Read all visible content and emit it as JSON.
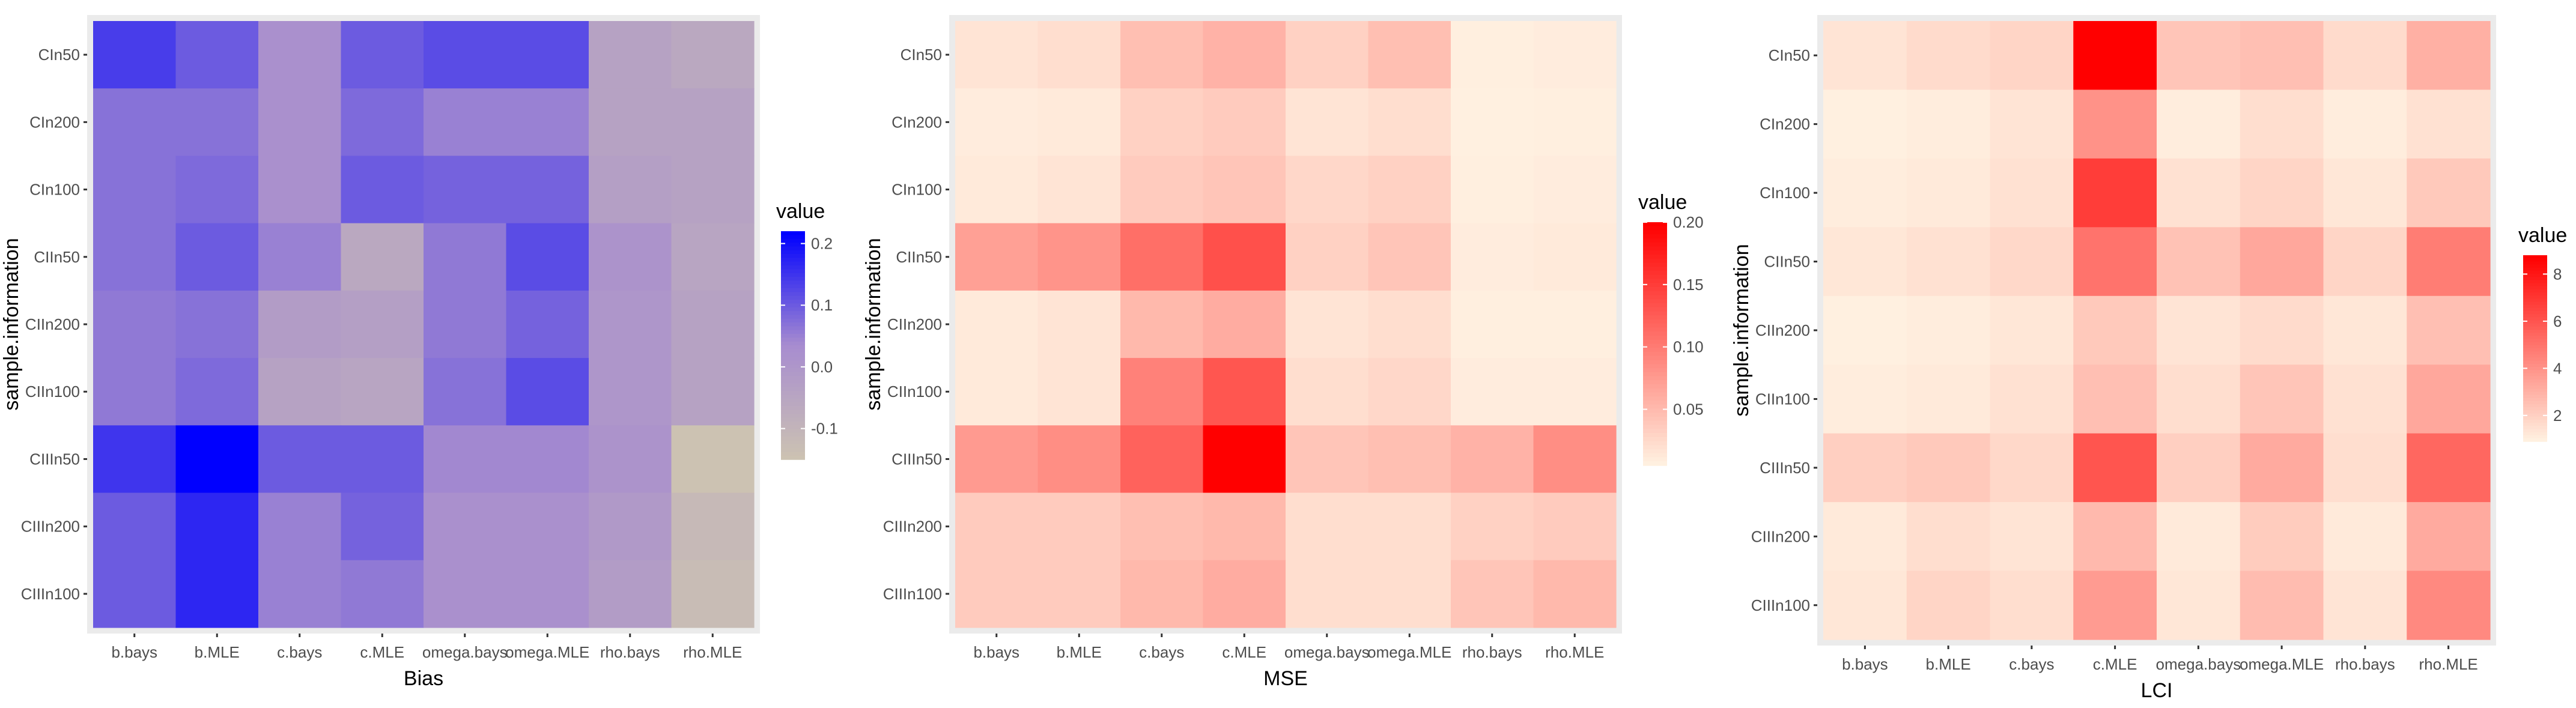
{
  "chart_data": [
    {
      "type": "heatmap",
      "title": "",
      "xlabel": "Bias",
      "ylabel": "sample.information",
      "x_categories": [
        "b.bays",
        "b.MLE",
        "c.bays",
        "c.MLE",
        "omega.bays",
        "omega.MLE",
        "rho.bays",
        "rho.MLE"
      ],
      "y_categories": [
        "CIn50",
        "CIn200",
        "CIn100",
        "CIIn50",
        "CIIn200",
        "CIIn100",
        "CIIIn50",
        "CIIIn200",
        "CIIIn100"
      ],
      "values": [
        [
          0.14,
          0.1,
          0.02,
          0.1,
          0.12,
          0.12,
          -0.04,
          -0.06
        ],
        [
          0.07,
          0.07,
          0.02,
          0.08,
          0.05,
          0.05,
          -0.04,
          -0.04
        ],
        [
          0.07,
          0.08,
          0.02,
          0.1,
          0.09,
          0.09,
          -0.03,
          -0.04
        ],
        [
          0.07,
          0.1,
          0.05,
          -0.06,
          0.06,
          0.12,
          0.01,
          -0.05
        ],
        [
          0.06,
          0.07,
          -0.02,
          -0.03,
          0.06,
          0.09,
          0.0,
          -0.04
        ],
        [
          0.06,
          0.08,
          -0.04,
          -0.05,
          0.07,
          0.12,
          0.0,
          -0.04
        ],
        [
          0.15,
          0.22,
          0.1,
          0.1,
          0.04,
          0.04,
          0.01,
          -0.15
        ],
        [
          0.1,
          0.17,
          0.05,
          0.09,
          0.02,
          0.02,
          -0.01,
          -0.12
        ],
        [
          0.1,
          0.17,
          0.05,
          0.06,
          0.02,
          0.02,
          -0.02,
          -0.13
        ]
      ],
      "legend": {
        "title": "value",
        "ticks": [
          "0.2",
          "0.1",
          "0.0",
          "-0.1"
        ],
        "range": [
          -0.15,
          0.22
        ],
        "colors": [
          "#CCC2B2",
          "#A78CCF",
          "#0000FF"
        ],
        "placement": "right"
      }
    },
    {
      "type": "heatmap",
      "title": "",
      "xlabel": "MSE",
      "ylabel": "sample.information",
      "x_categories": [
        "b.bays",
        "b.MLE",
        "c.bays",
        "c.MLE",
        "omega.bays",
        "omega.MLE",
        "rho.bays",
        "rho.MLE"
      ],
      "y_categories": [
        "CIn50",
        "CIn200",
        "CIn100",
        "CIIn50",
        "CIIn200",
        "CIIn100",
        "CIIIn50",
        "CIIIn200",
        "CIIIn100"
      ],
      "values": [
        [
          0.015,
          0.02,
          0.045,
          0.055,
          0.03,
          0.045,
          0.006,
          0.008
        ],
        [
          0.008,
          0.01,
          0.03,
          0.035,
          0.015,
          0.02,
          0.005,
          0.006
        ],
        [
          0.01,
          0.015,
          0.035,
          0.04,
          0.025,
          0.03,
          0.006,
          0.008
        ],
        [
          0.07,
          0.08,
          0.11,
          0.135,
          0.03,
          0.04,
          0.008,
          0.01
        ],
        [
          0.01,
          0.015,
          0.05,
          0.06,
          0.015,
          0.02,
          0.006,
          0.006
        ],
        [
          0.01,
          0.015,
          0.095,
          0.13,
          0.02,
          0.025,
          0.008,
          0.008
        ],
        [
          0.075,
          0.085,
          0.12,
          0.2,
          0.04,
          0.045,
          0.055,
          0.085
        ],
        [
          0.035,
          0.035,
          0.045,
          0.05,
          0.02,
          0.02,
          0.03,
          0.035
        ],
        [
          0.035,
          0.035,
          0.05,
          0.06,
          0.02,
          0.02,
          0.04,
          0.05
        ]
      ],
      "legend": {
        "title": "value",
        "ticks": [
          "0.20",
          "0.15",
          "0.10",
          "0.05"
        ],
        "range": [
          0.005,
          0.2
        ],
        "colors": [
          "#FFF0E0",
          "#FF0000"
        ],
        "placement": "right"
      }
    },
    {
      "type": "heatmap",
      "title": "",
      "xlabel": "LCI",
      "ylabel": "sample.information",
      "x_categories": [
        "b.bays",
        "b.MLE",
        "c.bays",
        "c.MLE",
        "omega.bays",
        "omega.MLE",
        "rho.bays",
        "rho.MLE"
      ],
      "y_categories": [
        "CIn50",
        "CIn200",
        "CIn100",
        "CIIn50",
        "CIIn200",
        "CIIn100",
        "CIIIn50",
        "CIIIn200",
        "CIIIn100"
      ],
      "values": [
        [
          1.3,
          1.6,
          1.8,
          8.8,
          2.3,
          2.5,
          1.6,
          3.0
        ],
        [
          0.9,
          1.0,
          1.3,
          4.0,
          1.0,
          1.5,
          1.0,
          1.4
        ],
        [
          1.0,
          1.1,
          1.4,
          6.8,
          1.4,
          1.8,
          1.2,
          2.2
        ],
        [
          1.2,
          1.4,
          1.7,
          5.0,
          2.4,
          3.3,
          1.8,
          4.7
        ],
        [
          0.9,
          1.0,
          1.2,
          2.2,
          1.3,
          1.6,
          1.2,
          2.5
        ],
        [
          1.0,
          1.1,
          1.4,
          2.5,
          1.5,
          2.3,
          1.4,
          3.3
        ],
        [
          2.0,
          2.2,
          1.7,
          6.0,
          2.0,
          3.2,
          1.5,
          5.4
        ],
        [
          1.1,
          1.5,
          1.3,
          2.7,
          1.1,
          2.1,
          1.1,
          3.2
        ],
        [
          1.2,
          1.8,
          1.5,
          3.7,
          1.2,
          2.6,
          1.3,
          4.3
        ]
      ],
      "legend": {
        "title": "value",
        "ticks": [
          "8",
          "6",
          "4",
          "2"
        ],
        "range": [
          0.9,
          8.8
        ],
        "colors": [
          "#FFF0E0",
          "#FF0000"
        ],
        "placement": "right"
      }
    }
  ]
}
